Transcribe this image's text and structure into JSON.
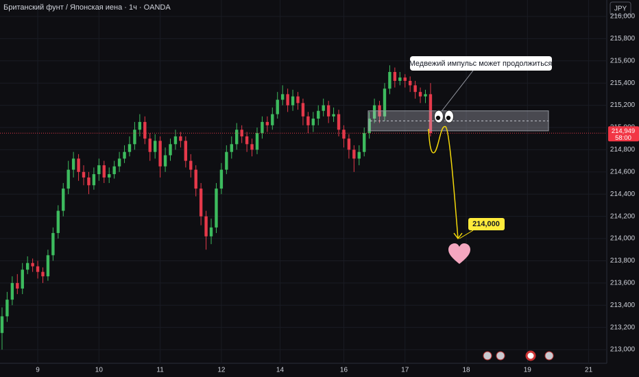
{
  "chart_data": {
    "type": "candlestick",
    "title": "Британский фунт / Японская иена · 1ч · OANDA",
    "currency": "JPY",
    "up_color": "#3dbb5e",
    "down_color": "#e5394a",
    "x": [
      0,
      2,
      4,
      6,
      8,
      10,
      12,
      14,
      16,
      18,
      20,
      22,
      24,
      26,
      28,
      30,
      32,
      34,
      36,
      38,
      40,
      42,
      44,
      46,
      48,
      50,
      52,
      54,
      56,
      58,
      60,
      62,
      64,
      66,
      68,
      70,
      72,
      74,
      76,
      78,
      80,
      82,
      84,
      86,
      88,
      90,
      92,
      94,
      96,
      98,
      100,
      102,
      104,
      106,
      108,
      110,
      112,
      114,
      116,
      118,
      120,
      122,
      124,
      126,
      128,
      130,
      132,
      134,
      136,
      138,
      140,
      142,
      144,
      146,
      148,
      150,
      152,
      154,
      156,
      158,
      160,
      162,
      164,
      166,
      168
    ],
    "open": [
      213.15,
      213.3,
      213.45,
      213.6,
      213.55,
      213.72,
      213.78,
      213.75,
      213.7,
      213.66,
      213.85,
      214.05,
      214.25,
      214.45,
      214.62,
      214.72,
      214.6,
      214.55,
      214.48,
      214.58,
      214.66,
      214.55,
      214.58,
      214.65,
      214.72,
      214.78,
      214.85,
      214.98,
      215.05,
      214.9,
      214.78,
      214.88,
      214.65,
      214.75,
      214.85,
      214.92,
      214.88,
      214.7,
      214.62,
      214.45,
      214.2,
      214.02,
      214.1,
      214.45,
      214.62,
      214.78,
      214.85,
      214.98,
      214.92,
      214.85,
      214.8,
      214.95,
      215.05,
      215.02,
      215.12,
      215.25,
      215.3,
      215.2,
      215.28,
      215.22,
      215.1,
      215.02,
      215.08,
      215.15,
      215.2,
      215.1,
      215.12,
      214.98,
      214.9,
      214.8,
      214.72,
      214.78,
      214.95,
      215.08,
      215.2,
      215.1,
      215.35,
      215.5,
      215.42,
      215.45,
      215.42,
      215.38,
      215.32,
      215.28,
      215.3
    ],
    "high": [
      213.38,
      213.52,
      213.66,
      213.68,
      213.78,
      213.84,
      213.82,
      213.8,
      213.74,
      213.9,
      214.1,
      214.3,
      214.5,
      214.7,
      214.78,
      214.76,
      214.66,
      214.6,
      214.64,
      214.72,
      214.7,
      214.64,
      214.7,
      214.78,
      214.84,
      214.92,
      215.05,
      215.12,
      215.1,
      214.95,
      214.94,
      214.92,
      214.82,
      214.9,
      214.98,
      214.96,
      214.92,
      214.76,
      214.66,
      214.5,
      214.25,
      214.18,
      214.5,
      214.68,
      214.84,
      214.92,
      215.04,
      215.02,
      214.96,
      214.9,
      215.0,
      215.1,
      215.1,
      215.18,
      215.32,
      215.38,
      215.35,
      215.34,
      215.32,
      215.26,
      215.14,
      215.14,
      215.2,
      215.26,
      215.24,
      215.18,
      215.16,
      215.02,
      214.94,
      214.84,
      214.84,
      215.0,
      215.14,
      215.26,
      215.24,
      215.4,
      215.56,
      215.54,
      215.5,
      215.48,
      215.46,
      215.42,
      215.36,
      215.34,
      215.4
    ],
    "low": [
      213.0,
      213.25,
      213.4,
      213.5,
      213.5,
      213.68,
      213.7,
      213.64,
      213.6,
      213.62,
      213.8,
      214.0,
      214.2,
      214.4,
      214.55,
      214.52,
      214.48,
      214.4,
      214.44,
      214.52,
      214.5,
      214.5,
      214.54,
      214.6,
      214.68,
      214.74,
      214.8,
      214.92,
      214.85,
      214.7,
      214.72,
      214.55,
      214.6,
      214.7,
      214.8,
      214.82,
      214.64,
      214.55,
      214.38,
      214.12,
      213.9,
      213.95,
      214.05,
      214.4,
      214.58,
      214.72,
      214.8,
      214.86,
      214.78,
      214.74,
      214.76,
      214.9,
      214.96,
      214.98,
      215.08,
      215.2,
      215.14,
      215.15,
      215.16,
      215.02,
      214.95,
      214.96,
      215.02,
      215.1,
      215.04,
      215.05,
      214.92,
      214.82,
      214.72,
      214.6,
      214.66,
      214.74,
      214.9,
      215.04,
      215.04,
      215.06,
      215.3,
      215.36,
      215.38,
      215.36,
      215.32,
      215.26,
      215.22,
      215.22,
      214.92
    ],
    "close": [
      213.3,
      213.45,
      213.6,
      213.55,
      213.72,
      213.78,
      213.75,
      213.7,
      213.66,
      213.85,
      214.05,
      214.25,
      214.45,
      214.62,
      214.72,
      214.6,
      214.55,
      214.48,
      214.58,
      214.66,
      214.55,
      214.58,
      214.65,
      214.72,
      214.78,
      214.85,
      214.98,
      215.05,
      214.9,
      214.78,
      214.88,
      214.65,
      214.75,
      214.85,
      214.92,
      214.88,
      214.7,
      214.62,
      214.45,
      214.2,
      214.02,
      214.1,
      214.45,
      214.62,
      214.78,
      214.85,
      214.98,
      214.92,
      214.85,
      214.8,
      214.95,
      215.05,
      215.02,
      215.12,
      215.25,
      215.3,
      215.2,
      215.28,
      215.22,
      215.1,
      215.02,
      215.08,
      215.15,
      215.2,
      215.1,
      215.12,
      214.98,
      214.9,
      214.8,
      214.72,
      214.78,
      214.95,
      215.08,
      215.2,
      215.1,
      215.35,
      215.5,
      215.42,
      215.45,
      215.42,
      215.38,
      215.32,
      215.28,
      215.3,
      214.95
    ],
    "xlim": [
      -0.8,
      237.1
    ],
    "xticks": [
      {
        "value": 14,
        "label": "9"
      },
      {
        "value": 38,
        "label": "10"
      },
      {
        "value": 62,
        "label": "11"
      },
      {
        "value": 86,
        "label": "12"
      },
      {
        "value": 109,
        "label": "14"
      },
      {
        "value": 134,
        "label": "16"
      },
      {
        "value": 158,
        "label": "17"
      },
      {
        "value": 182,
        "label": "18"
      },
      {
        "value": 206,
        "label": "19"
      },
      {
        "value": 230,
        "label": "21"
      }
    ],
    "ylim": [
      212.877,
      216.148
    ],
    "yticks": [
      {
        "value": 216.0,
        "label": "216,000"
      },
      {
        "value": 215.8,
        "label": "215,800"
      },
      {
        "value": 215.6,
        "label": "215,600"
      },
      {
        "value": 215.4,
        "label": "215,400"
      },
      {
        "value": 215.2,
        "label": "215,200"
      },
      {
        "value": 215.0,
        "label": "215,000"
      },
      {
        "value": 214.8,
        "label": "214,800"
      },
      {
        "value": 214.6,
        "label": "214,600"
      },
      {
        "value": 214.4,
        "label": "214,400"
      },
      {
        "value": 214.2,
        "label": "214,200"
      },
      {
        "value": 214.0,
        "label": "214,000"
      },
      {
        "value": 213.8,
        "label": "213,800"
      },
      {
        "value": 213.6,
        "label": "213,600"
      },
      {
        "value": 213.4,
        "label": "213,400"
      },
      {
        "value": 213.2,
        "label": "213,200"
      },
      {
        "value": 213.0,
        "label": "213,000"
      }
    ],
    "last_price": {
      "value": 214.949,
      "label": "214,949"
    },
    "countdown": "58:00",
    "zone": [
      214.97,
      215.15
    ],
    "annotation": "Медвежий импульс может продолжиться",
    "target": {
      "value": 214.0,
      "label": "214,000"
    }
  }
}
